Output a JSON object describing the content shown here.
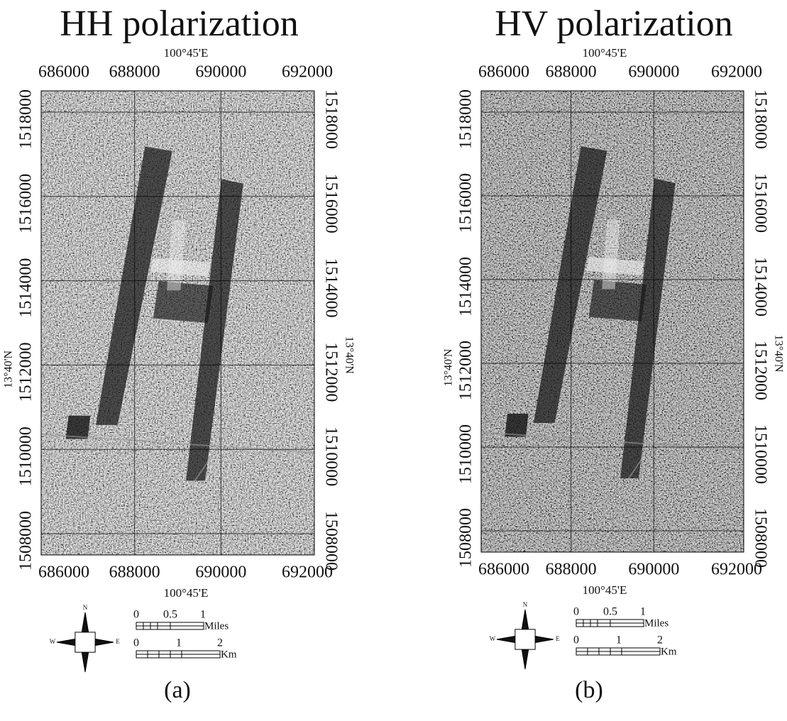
{
  "panels": [
    {
      "title": "HH polarization",
      "longitude_top": "100°45'E",
      "longitude_bottom": "100°45'E",
      "latitude_left": "13°40'N",
      "latitude_right": "13°40'N",
      "easting_top": [
        "686000",
        "688000",
        "690000",
        "692000"
      ],
      "easting_bottom": [
        "686000",
        "688000",
        "690000",
        "692000"
      ],
      "northing_left": [
        "1518000",
        "1516000",
        "1514000",
        "1512000",
        "1510000",
        "1508000"
      ],
      "northing_right": [
        "1518000",
        "1516000",
        "1514000",
        "1512000",
        "1510000",
        "1508000"
      ],
      "scale": {
        "miles_ticks": [
          "0",
          "0.5",
          "1"
        ],
        "miles_unit": "Miles",
        "km_ticks": [
          "0",
          "1",
          "2"
        ],
        "km_unit": "Km"
      },
      "compass": {
        "n": "N",
        "w": "W",
        "e": "E"
      },
      "caption": "(a)"
    },
    {
      "title": "HV polarization",
      "longitude_top": "100°45'E",
      "longitude_bottom": "100°45'E",
      "latitude_left": "13°40'N",
      "latitude_right": "13°40'N",
      "easting_top": [
        "686000",
        "688000",
        "690000",
        "692000"
      ],
      "easting_bottom": [
        "686000",
        "688000",
        "690000",
        "692000"
      ],
      "northing_left": [
        "1518000",
        "1516000",
        "1514000",
        "1512000",
        "1510000",
        "1508000"
      ],
      "northing_right": [
        "1518000",
        "1516000",
        "1514000",
        "1512000",
        "1510000",
        "1508000"
      ],
      "scale": {
        "miles_ticks": [
          "0",
          "0.5",
          "1"
        ],
        "miles_unit": "Miles",
        "km_ticks": [
          "0",
          "1",
          "2"
        ],
        "km_unit": "Km"
      },
      "compass": {
        "n": "N",
        "w": "W",
        "e": "E"
      },
      "caption": "(b)"
    }
  ]
}
